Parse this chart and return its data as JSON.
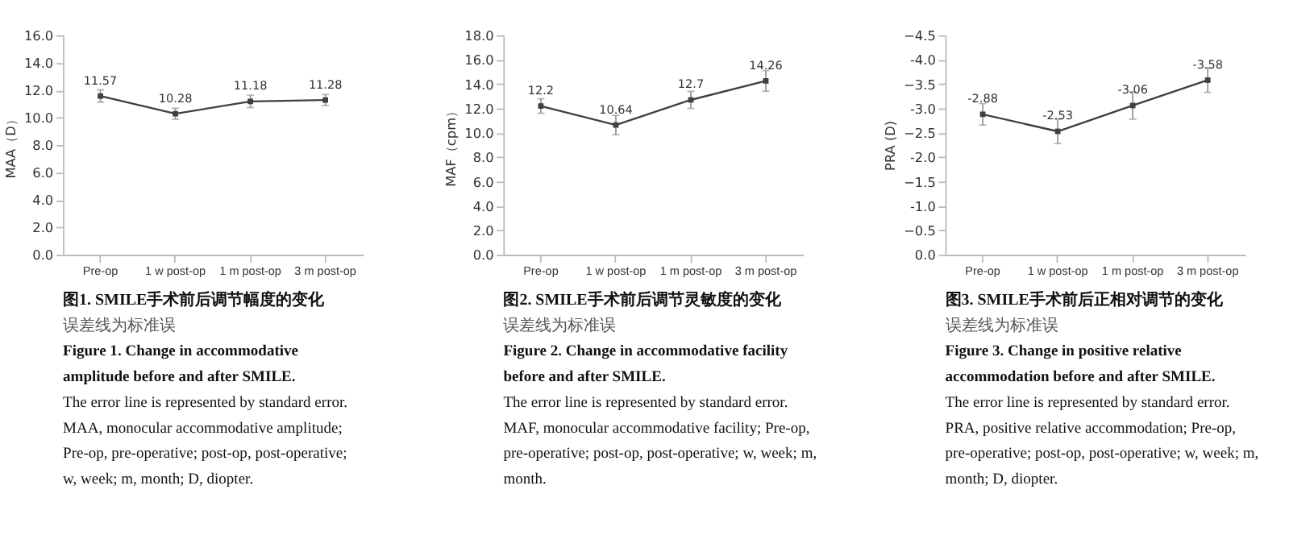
{
  "chart_data": [
    {
      "type": "line",
      "categories": [
        "Pre-op",
        "1 w post-op",
        "1 m post-op",
        "3 m post-op"
      ],
      "ylabel": "MAA（D）",
      "series": [
        {
          "color": "#404040",
          "values": [
            11.57,
            10.28,
            11.18,
            11.28
          ],
          "errors": [
            0.45,
            0.4,
            0.45,
            0.4
          ]
        }
      ],
      "ylim": [
        0,
        16
      ],
      "yticks": [
        {
          "value": 0,
          "label": "0.0"
        },
        {
          "value": 2,
          "label": "2.0"
        },
        {
          "value": 4,
          "label": "4.0"
        },
        {
          "value": 6,
          "label": "6.0"
        },
        {
          "value": 8,
          "label": "8.0"
        },
        {
          "value": 10,
          "label": "10.0"
        },
        {
          "value": 12,
          "label": "12.0"
        },
        {
          "value": 14,
          "label": "14.0"
        },
        {
          "value": 16,
          "label": "16.0"
        }
      ],
      "data_labels": true,
      "marker": "square",
      "grid": false,
      "annotations": [
        "图1.   SMILE手术前后调节幅度的变化",
        "误差线为标准误",
        "Figure 1.   Change in accommodative",
        "amplitude before and after SMILE.",
        "The error line is represented by standard error.",
        "MAA, monocular accommodative amplitude;",
        "Pre-op, pre-operative; post-op, post-operative;",
        "w, week; m, month; D, diopter."
      ]
    },
    {
      "type": "line",
      "categories": [
        "Pre-op",
        "1 w post-op",
        "1 m post-op",
        "3 m post-op"
      ],
      "ylabel": "MAF（cpm）",
      "series": [
        {
          "color": "#404040",
          "values": [
            12.2,
            10.64,
            12.7,
            14.26
          ],
          "errors": [
            0.6,
            0.8,
            0.7,
            0.85
          ]
        }
      ],
      "ylim": [
        0,
        18
      ],
      "yticks": [
        {
          "value": 0,
          "label": "0.0"
        },
        {
          "value": 2,
          "label": "2.0"
        },
        {
          "value": 4,
          "label": "4.0"
        },
        {
          "value": 6,
          "label": "6.0"
        },
        {
          "value": 8,
          "label": "8.0"
        },
        {
          "value": 10,
          "label": "10.0"
        },
        {
          "value": 12,
          "label": "12.0"
        },
        {
          "value": 14,
          "label": "14.0"
        },
        {
          "value": 16,
          "label": "16.0"
        },
        {
          "value": 18,
          "label": "18.0"
        }
      ],
      "data_labels": true,
      "marker": "square",
      "grid": false,
      "annotations": [
        "图2.   SMILE手术前后调节灵敏度的变化",
        "误差线为标准误",
        "Figure 2. Change in accommodative facility",
        "before and after SMILE.",
        "The error line is represented by standard error.",
        "MAF, monocular accommodative facility; Pre-op,",
        "pre-operative; post-op, post-operative; w, week; m,",
        "month."
      ]
    },
    {
      "type": "line",
      "categories": [
        "Pre-op",
        "1 w post-op",
        "1 m post-op",
        "3 m post-op"
      ],
      "ylabel": "PRA (D)",
      "series": [
        {
          "color": "#404040",
          "values": [
            -2.88,
            -2.53,
            -3.06,
            -3.58
          ],
          "errors": [
            0.22,
            0.25,
            0.28,
            0.25
          ]
        }
      ],
      "ylim": [
        0,
        -4.5
      ],
      "yticks": [
        {
          "value": 0,
          "label": "0.0"
        },
        -0.5,
        {
          "value": -1,
          "label": "-1.0"
        },
        -1.5,
        {
          "value": -2,
          "label": "-2.0"
        },
        -2.5,
        {
          "value": -3,
          "label": "-3.0"
        },
        -3.5,
        {
          "value": -4,
          "label": "-4.0"
        },
        -4.5
      ],
      "data_labels": true,
      "marker": "square",
      "grid": false,
      "annotations": [
        "图3.   SMILE手术前后正相对调节的变化",
        "误差线为标准误",
        "Figure 3. Change in positive relative",
        "accommodation before and after SMILE.",
        "The error line is represented by standard error.",
        "PRA, positive relative accommodation; Pre-op,",
        "pre-operative; post-op, post-operative; w, week; m,",
        "month; D, diopter."
      ]
    }
  ]
}
